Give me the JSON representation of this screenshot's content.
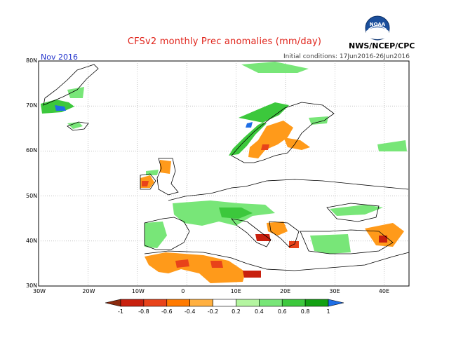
{
  "header": {
    "title": "CFSv2 monthly Prec anomalies (mm/day)",
    "agency": "NWS/NCEP/CPC",
    "logo_text": "NOAA",
    "month": "Nov 2016",
    "initial_conditions": "Initial conditions: 17Jun2016-26Jun2016"
  },
  "map": {
    "region": "Europe",
    "projection": "lat-lon",
    "lon_range": [
      -30,
      45
    ],
    "lat_range": [
      30,
      80
    ],
    "grid": true,
    "lat_labels": [
      "80N",
      "70N",
      "60N",
      "50N",
      "40N",
      "30N"
    ],
    "lon_labels": [
      "30W",
      "20W",
      "10W",
      "0",
      "10E",
      "20E",
      "30E",
      "40E"
    ]
  },
  "colorbar": {
    "tick_labels": [
      "-1",
      "-0.8",
      "-0.6",
      "-0.4",
      "-0.2",
      "0.2",
      "0.4",
      "0.6",
      "0.8",
      "1"
    ],
    "colors": [
      "#8b2a0e",
      "#c8200e",
      "#e8431a",
      "#ff7a00",
      "#ffb040",
      "#ffffff",
      "#b4f5a0",
      "#78e678",
      "#3cc83c",
      "#12a012",
      "#1e6ee6"
    ]
  }
}
